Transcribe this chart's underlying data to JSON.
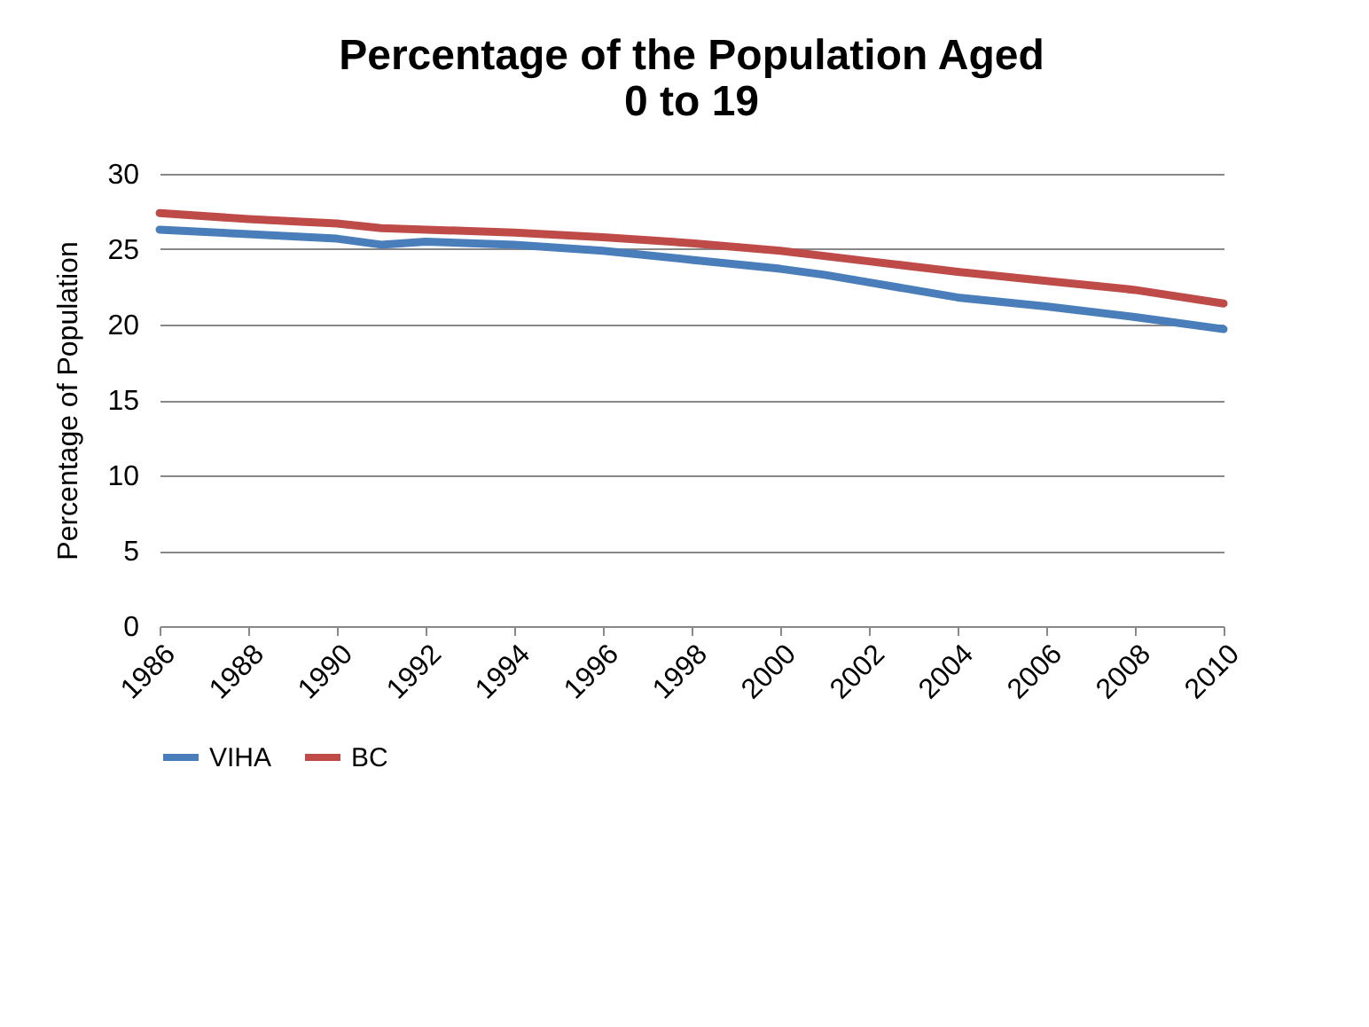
{
  "chart_data": {
    "type": "line",
    "title": "Percentage of the Population Aged 0 to 19",
    "ylabel": "Percentage of Population",
    "xlim": [
      1986,
      2010
    ],
    "xticks": [
      1986,
      1988,
      1990,
      1992,
      1994,
      1996,
      1998,
      2000,
      2002,
      2004,
      2006,
      2008,
      2010
    ],
    "ylim": [
      0,
      30
    ],
    "yticks": [
      0,
      5,
      10,
      15,
      20,
      25,
      30
    ],
    "grid": "y",
    "legend": "bottom",
    "line_style": "solid",
    "marker": "none",
    "series": [
      {
        "name": "VIHA",
        "color": "#4a7ebb",
        "x": [
          1986,
          1988,
          1990,
          1991,
          1992,
          1994,
          1996,
          1998,
          2000,
          2001,
          2002,
          2004,
          2006,
          2008,
          2010
        ],
        "values": [
          26.3,
          26.0,
          25.7,
          25.3,
          25.5,
          25.3,
          24.9,
          24.3,
          23.7,
          23.3,
          22.8,
          21.8,
          21.2,
          20.5,
          19.7
        ]
      },
      {
        "name": "BC",
        "color": "#be4b48",
        "x": [
          1986,
          1988,
          1990,
          1991,
          1994,
          1996,
          1998,
          2000,
          2002,
          2004,
          2006,
          2008,
          2010
        ],
        "values": [
          27.4,
          27.0,
          26.7,
          26.4,
          26.1,
          25.8,
          25.4,
          24.9,
          24.2,
          23.5,
          22.9,
          22.3,
          21.4
        ]
      }
    ]
  }
}
